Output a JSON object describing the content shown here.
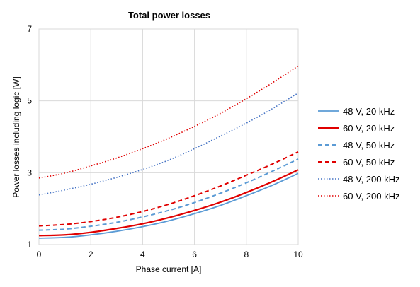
{
  "chart_data": {
    "type": "line",
    "title": "Total power losses",
    "xlabel": "Phase current [A]",
    "ylabel": "Power losses including logic [W]",
    "xlim": [
      0,
      10
    ],
    "ylim": [
      1,
      7
    ],
    "xticks": [
      0,
      2,
      4,
      6,
      8,
      10
    ],
    "yticks": [
      1,
      3,
      5,
      7
    ],
    "grid": true,
    "legend_position": "right",
    "x": [
      0,
      1,
      2,
      3,
      4,
      5,
      6,
      7,
      8,
      9,
      10
    ],
    "series": [
      {
        "name": "48 V, 20 kHz",
        "color": "#5b9bd5",
        "style": "solid",
        "values": [
          1.18,
          1.2,
          1.27,
          1.37,
          1.5,
          1.66,
          1.86,
          2.09,
          2.36,
          2.65,
          2.98
        ]
      },
      {
        "name": "60 V, 20 kHz",
        "color": "#e00000",
        "style": "solid",
        "values": [
          1.25,
          1.27,
          1.34,
          1.45,
          1.58,
          1.75,
          1.95,
          2.18,
          2.45,
          2.75,
          3.08
        ]
      },
      {
        "name": "48 V, 50 kHz",
        "color": "#5b9bd5",
        "style": "dashed",
        "values": [
          1.4,
          1.43,
          1.51,
          1.62,
          1.77,
          1.95,
          2.17,
          2.43,
          2.72,
          3.04,
          3.38
        ]
      },
      {
        "name": "60 V, 50 kHz",
        "color": "#e00000",
        "style": "dashed",
        "values": [
          1.52,
          1.56,
          1.64,
          1.76,
          1.92,
          2.12,
          2.36,
          2.63,
          2.93,
          3.24,
          3.58
        ]
      },
      {
        "name": "48 V, 200 kHz",
        "color": "#4472c4",
        "style": "dotted",
        "values": [
          2.38,
          2.52,
          2.68,
          2.87,
          3.09,
          3.35,
          3.67,
          4.02,
          4.38,
          4.78,
          5.22
        ]
      },
      {
        "name": "60 V, 200 kHz",
        "color": "#e00000",
        "style": "dotted",
        "values": [
          2.85,
          2.99,
          3.19,
          3.41,
          3.67,
          3.96,
          4.29,
          4.65,
          5.06,
          5.5,
          5.97
        ]
      }
    ]
  }
}
